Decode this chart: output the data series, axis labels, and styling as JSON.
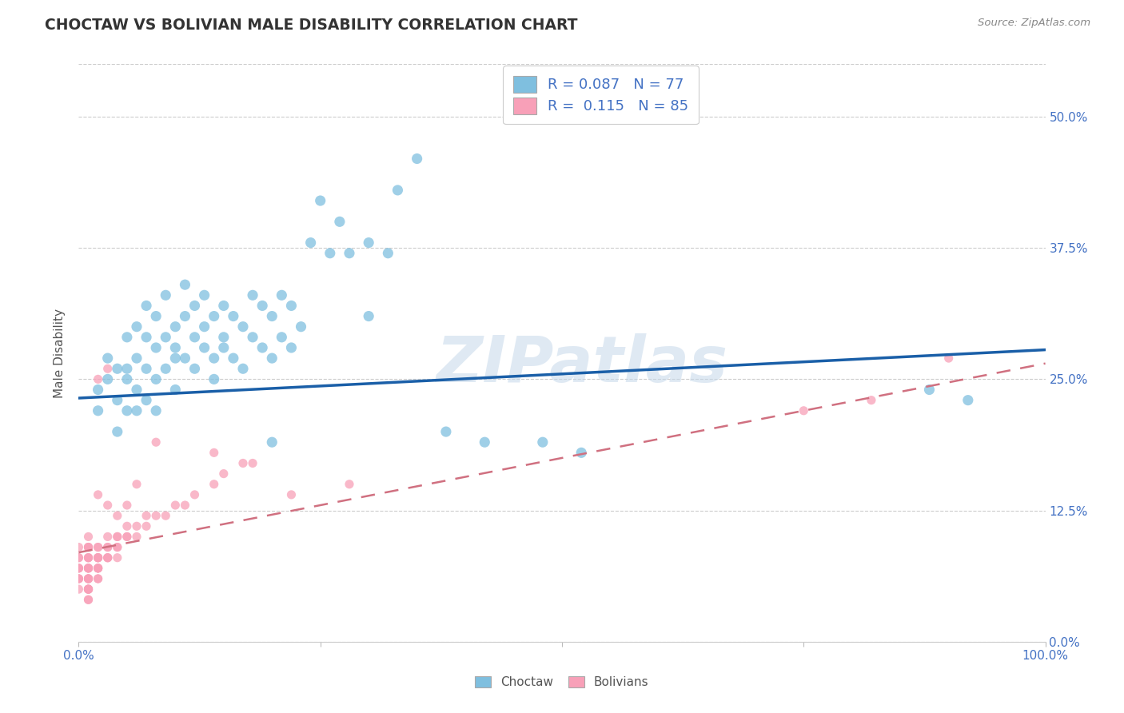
{
  "title": "CHOCTAW VS BOLIVIAN MALE DISABILITY CORRELATION CHART",
  "source": "Source: ZipAtlas.com",
  "ylabel": "Male Disability",
  "watermark": "ZIPatlas",
  "choctaw_R": 0.087,
  "choctaw_N": 77,
  "bolivian_R": 0.115,
  "bolivian_N": 85,
  "choctaw_color": "#7fbfdf",
  "bolivian_color": "#f8a0b8",
  "choctaw_line_color": "#1a5fa8",
  "bolivian_line_color": "#d07080",
  "xlim": [
    0.0,
    1.0
  ],
  "ylim": [
    0.0,
    0.55
  ],
  "yticks": [
    0.0,
    0.125,
    0.25,
    0.375,
    0.5
  ],
  "ytick_labels": [
    "0.0%",
    "12.5%",
    "25.0%",
    "37.5%",
    "50.0%"
  ],
  "xtick_labels": [
    "0.0%",
    "",
    "",
    "",
    "100.0%"
  ],
  "choctaw_line_x0": 0.0,
  "choctaw_line_y0": 0.232,
  "choctaw_line_x1": 1.0,
  "choctaw_line_y1": 0.278,
  "bolivian_line_x0": 0.0,
  "bolivian_line_y0": 0.085,
  "bolivian_line_x1": 1.0,
  "bolivian_line_y1": 0.265,
  "choctaw_x": [
    0.02,
    0.02,
    0.03,
    0.03,
    0.04,
    0.04,
    0.04,
    0.05,
    0.05,
    0.05,
    0.05,
    0.06,
    0.06,
    0.06,
    0.06,
    0.07,
    0.07,
    0.07,
    0.07,
    0.08,
    0.08,
    0.08,
    0.08,
    0.09,
    0.09,
    0.09,
    0.1,
    0.1,
    0.1,
    0.1,
    0.11,
    0.11,
    0.11,
    0.12,
    0.12,
    0.12,
    0.13,
    0.13,
    0.13,
    0.14,
    0.14,
    0.14,
    0.15,
    0.15,
    0.15,
    0.16,
    0.16,
    0.17,
    0.17,
    0.18,
    0.18,
    0.19,
    0.19,
    0.2,
    0.2,
    0.21,
    0.21,
    0.22,
    0.22,
    0.23,
    0.24,
    0.25,
    0.26,
    0.27,
    0.28,
    0.3,
    0.3,
    0.32,
    0.33,
    0.35,
    0.2,
    0.38,
    0.42,
    0.48,
    0.52,
    0.88,
    0.92
  ],
  "choctaw_y": [
    0.24,
    0.22,
    0.25,
    0.27,
    0.23,
    0.26,
    0.2,
    0.26,
    0.29,
    0.22,
    0.25,
    0.24,
    0.27,
    0.3,
    0.22,
    0.26,
    0.29,
    0.23,
    0.32,
    0.25,
    0.28,
    0.22,
    0.31,
    0.29,
    0.26,
    0.33,
    0.27,
    0.3,
    0.24,
    0.28,
    0.31,
    0.27,
    0.34,
    0.29,
    0.32,
    0.26,
    0.3,
    0.28,
    0.33,
    0.27,
    0.31,
    0.25,
    0.29,
    0.32,
    0.28,
    0.31,
    0.27,
    0.3,
    0.26,
    0.29,
    0.33,
    0.28,
    0.32,
    0.27,
    0.31,
    0.29,
    0.33,
    0.28,
    0.32,
    0.3,
    0.38,
    0.42,
    0.37,
    0.4,
    0.37,
    0.38,
    0.31,
    0.37,
    0.43,
    0.46,
    0.19,
    0.2,
    0.19,
    0.19,
    0.18,
    0.24,
    0.23
  ],
  "bolivian_x": [
    0.0,
    0.0,
    0.0,
    0.0,
    0.0,
    0.0,
    0.0,
    0.0,
    0.0,
    0.0,
    0.01,
    0.01,
    0.01,
    0.01,
    0.01,
    0.01,
    0.01,
    0.01,
    0.01,
    0.01,
    0.01,
    0.01,
    0.01,
    0.01,
    0.01,
    0.01,
    0.01,
    0.01,
    0.01,
    0.01,
    0.02,
    0.02,
    0.02,
    0.02,
    0.02,
    0.02,
    0.02,
    0.02,
    0.02,
    0.02,
    0.02,
    0.02,
    0.03,
    0.03,
    0.03,
    0.03,
    0.03,
    0.03,
    0.04,
    0.04,
    0.04,
    0.04,
    0.04,
    0.05,
    0.05,
    0.05,
    0.06,
    0.06,
    0.07,
    0.07,
    0.08,
    0.09,
    0.1,
    0.11,
    0.12,
    0.14,
    0.15,
    0.17,
    0.04,
    0.05,
    0.06,
    0.02,
    0.03,
    0.14,
    0.18,
    0.22,
    0.28,
    0.75,
    0.82,
    0.9,
    0.08,
    0.03,
    0.02,
    0.01,
    0.01
  ],
  "bolivian_y": [
    0.09,
    0.08,
    0.08,
    0.07,
    0.07,
    0.07,
    0.06,
    0.06,
    0.06,
    0.05,
    0.09,
    0.09,
    0.08,
    0.08,
    0.08,
    0.07,
    0.07,
    0.07,
    0.07,
    0.06,
    0.06,
    0.06,
    0.06,
    0.05,
    0.05,
    0.05,
    0.05,
    0.05,
    0.04,
    0.04,
    0.09,
    0.09,
    0.08,
    0.08,
    0.08,
    0.08,
    0.07,
    0.07,
    0.07,
    0.07,
    0.06,
    0.06,
    0.1,
    0.09,
    0.09,
    0.08,
    0.08,
    0.08,
    0.1,
    0.1,
    0.09,
    0.09,
    0.08,
    0.11,
    0.1,
    0.1,
    0.11,
    0.1,
    0.12,
    0.11,
    0.12,
    0.12,
    0.13,
    0.13,
    0.14,
    0.15,
    0.16,
    0.17,
    0.12,
    0.13,
    0.15,
    0.25,
    0.26,
    0.18,
    0.17,
    0.14,
    0.15,
    0.22,
    0.23,
    0.27,
    0.19,
    0.13,
    0.14,
    0.1,
    0.09
  ]
}
